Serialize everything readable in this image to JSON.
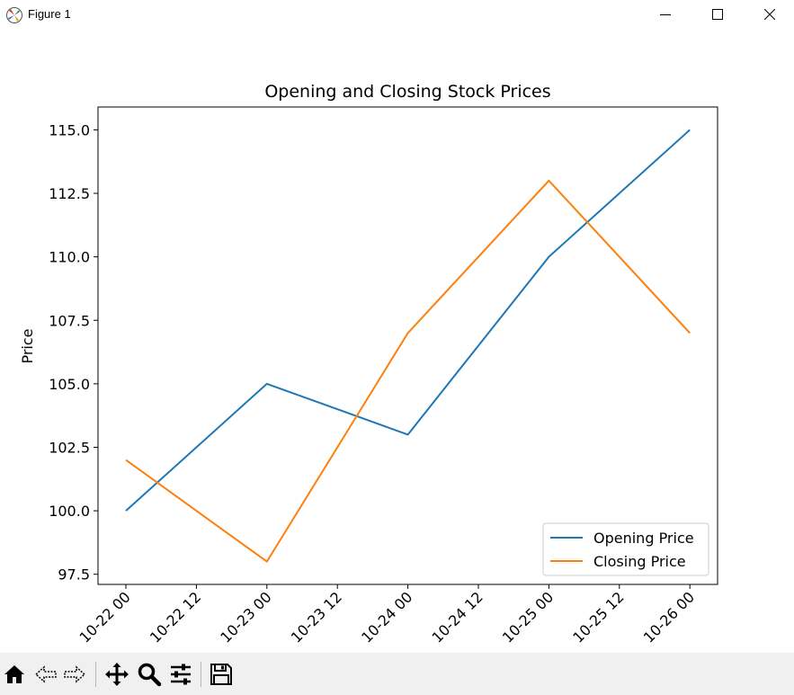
{
  "window": {
    "title": "Figure 1"
  },
  "toolbar": {
    "buttons": [
      "home-icon",
      "back-icon",
      "forward-icon",
      "pan-icon",
      "zoom-icon",
      "configure-subplots-icon",
      "save-icon"
    ]
  },
  "chart_data": {
    "type": "line",
    "title": "Opening and Closing Stock Prices",
    "xlabel": "",
    "ylabel": "Price",
    "x": [
      "10-22 00",
      "10-23 00",
      "10-24 00",
      "10-25 00",
      "10-26 00"
    ],
    "x_ticks": [
      "10-22 00",
      "10-22 12",
      "10-23 00",
      "10-23 12",
      "10-24 00",
      "10-24 12",
      "10-25 00",
      "10-25 12",
      "10-26 00"
    ],
    "y_ticks": [
      "97.5",
      "100.0",
      "102.5",
      "105.0",
      "107.5",
      "110.0",
      "112.5",
      "115.0"
    ],
    "ylim": [
      97.1,
      115.9
    ],
    "series": [
      {
        "name": "Opening Price",
        "color": "#1f77b4",
        "values": [
          100,
          105,
          103,
          110,
          115
        ]
      },
      {
        "name": "Closing Price",
        "color": "#ff7f0e",
        "values": [
          102,
          98,
          107,
          113,
          107
        ]
      }
    ],
    "legend_position": "bottom-right",
    "grid": false
  }
}
